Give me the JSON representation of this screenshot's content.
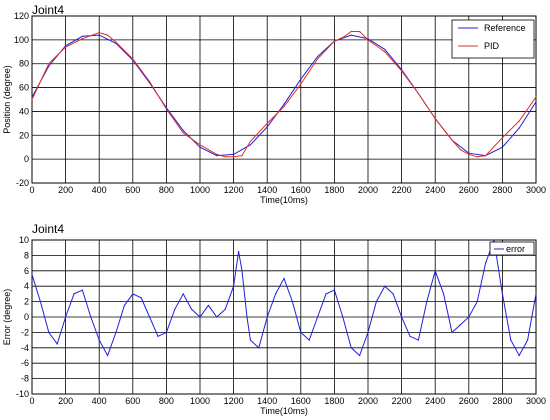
{
  "chart_data": [
    {
      "type": "line",
      "title": "Joint4",
      "xlabel": "Time(10ms)",
      "ylabel": "Position (degree)",
      "xlim": [
        0,
        3000
      ],
      "ylim": [
        -20,
        120
      ],
      "xticks": [
        "0",
        "200",
        "400",
        "600",
        "800",
        "1000",
        "1200",
        "1400",
        "1600",
        "1800",
        "2000",
        "2200",
        "2400",
        "2600",
        "2800",
        "3000"
      ],
      "yticks": [
        "-20",
        "0",
        "20",
        "40",
        "60",
        "80",
        "100",
        "120"
      ],
      "grid": true,
      "legend_position": "top-right",
      "series": [
        {
          "name": "Reference",
          "color": "#2020e0",
          "x": [
            0,
            100,
            200,
            300,
            400,
            500,
            600,
            700,
            800,
            900,
            1000,
            1100,
            1200,
            1300,
            1400,
            1500,
            1600,
            1700,
            1800,
            1900,
            2000,
            2100,
            2200,
            2300,
            2400,
            2500,
            2600,
            2700,
            2800,
            2900,
            3000
          ],
          "y": [
            52,
            78,
            95,
            103,
            104,
            97,
            83,
            64,
            43,
            24,
            10,
            3,
            4,
            12,
            27,
            46,
            67,
            86,
            99,
            104,
            101,
            92,
            75,
            55,
            34,
            16,
            5,
            3,
            10,
            26,
            48
          ]
        },
        {
          "name": "PID",
          "color": "#e03020",
          "x": [
            0,
            100,
            200,
            300,
            400,
            450,
            500,
            600,
            700,
            800,
            900,
            1000,
            1100,
            1150,
            1200,
            1250,
            1300,
            1400,
            1500,
            1600,
            1700,
            1800,
            1850,
            1900,
            1950,
            2000,
            2100,
            2200,
            2300,
            2400,
            2500,
            2550,
            2600,
            2650,
            2700,
            2800,
            2900,
            3000
          ],
          "y": [
            50,
            80,
            94,
            101,
            106,
            104,
            98,
            84,
            65,
            42,
            22,
            12,
            4,
            2,
            2,
            3,
            15,
            30,
            44,
            63,
            84,
            99,
            102,
            107,
            107,
            100,
            90,
            74,
            55,
            34,
            16,
            8,
            4,
            2,
            3,
            18,
            32,
            52
          ]
        }
      ]
    },
    {
      "type": "line",
      "title": "Joint4",
      "xlabel": "Time(10ms)",
      "ylabel": "Error (degree)",
      "xlim": [
        0,
        3000
      ],
      "ylim": [
        -10,
        10
      ],
      "xticks": [
        "0",
        "200",
        "400",
        "600",
        "800",
        "1000",
        "1200",
        "1400",
        "1600",
        "1800",
        "2000",
        "2200",
        "2400",
        "2600",
        "2800",
        "3000"
      ],
      "yticks": [
        "-10",
        "-8",
        "-6",
        "-4",
        "-2",
        "0",
        "2",
        "4",
        "6",
        "8",
        "10"
      ],
      "grid": true,
      "legend_position": "top-right",
      "series": [
        {
          "name": "error",
          "color": "#2020e0",
          "x": [
            0,
            50,
            100,
            150,
            200,
            250,
            300,
            350,
            400,
            450,
            500,
            550,
            600,
            650,
            700,
            750,
            800,
            850,
            900,
            950,
            1000,
            1050,
            1100,
            1150,
            1200,
            1230,
            1250,
            1280,
            1300,
            1350,
            1400,
            1450,
            1500,
            1550,
            1600,
            1650,
            1700,
            1750,
            1800,
            1850,
            1900,
            1950,
            2000,
            2050,
            2100,
            2150,
            2200,
            2250,
            2300,
            2350,
            2400,
            2450,
            2500,
            2550,
            2600,
            2650,
            2700,
            2750,
            2800,
            2850,
            2900,
            2950,
            3000
          ],
          "y": [
            5.5,
            2,
            -2,
            -3.5,
            0,
            3,
            3.5,
            0,
            -3,
            -5,
            -2,
            1.5,
            3,
            2.5,
            0,
            -2.5,
            -2,
            1,
            3,
            1,
            0,
            1.5,
            0,
            1,
            4,
            8.5,
            6,
            0,
            -3,
            -4,
            0,
            3,
            5,
            2,
            -2,
            -3,
            0,
            3,
            3.5,
            0,
            -4,
            -5,
            -2,
            2,
            4,
            3,
            0,
            -2.5,
            -3,
            2,
            6,
            3,
            -2,
            -1,
            0,
            2,
            7,
            10,
            3,
            -3,
            -5,
            -3,
            3
          ]
        }
      ]
    }
  ]
}
